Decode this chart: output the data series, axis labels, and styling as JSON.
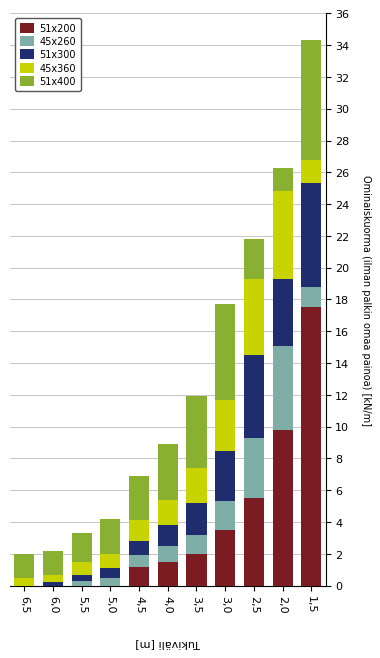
{
  "categories": [
    "6,5",
    "6,0",
    "5,5",
    "5,0",
    "4,5",
    "4,0",
    "3,5",
    "3,0",
    "2,5",
    "2,0",
    "1,5"
  ],
  "bar_data": {
    "51x200": [
      0.0,
      0.0,
      0.0,
      0.0,
      1.2,
      1.5,
      2.0,
      3.5,
      5.5,
      9.8,
      17.5
    ],
    "45x260": [
      0.0,
      0.0,
      0.3,
      0.5,
      0.7,
      1.0,
      1.2,
      1.8,
      3.8,
      5.3,
      1.3
    ],
    "51x300": [
      0.0,
      0.2,
      0.4,
      0.6,
      0.9,
      1.3,
      2.0,
      3.2,
      5.2,
      4.2,
      6.5
    ],
    "45x360": [
      0.5,
      0.5,
      0.8,
      0.9,
      1.3,
      1.6,
      2.2,
      3.2,
      4.8,
      5.5,
      1.5
    ],
    "51x400": [
      1.5,
      1.5,
      1.8,
      2.2,
      2.8,
      3.5,
      4.5,
      6.0,
      2.5,
      1.5,
      7.5
    ]
  },
  "colors": {
    "51x200": "#7B1C22",
    "45x260": "#7FADA8",
    "51x300": "#1F2D6E",
    "45x360": "#C8D400",
    "51x400": "#89B030"
  },
  "ylabel_right": "Ominaiskuorma (ilman palkin omaa painoa) [kN/m]",
  "xlabel": "Tukiväli [m]",
  "ylim": [
    0,
    36
  ],
  "yticks": [
    0,
    2,
    4,
    6,
    8,
    10,
    12,
    14,
    16,
    18,
    20,
    22,
    24,
    26,
    28,
    30,
    32,
    34,
    36
  ],
  "legend_order": [
    "51x200",
    "45x260",
    "51x300",
    "45x360",
    "51x400"
  ],
  "background_color": "#FFFFFF",
  "grid_color": "#BBBBBB",
  "figsize": [
    3.69,
    6.47
  ],
  "dpi": 100
}
